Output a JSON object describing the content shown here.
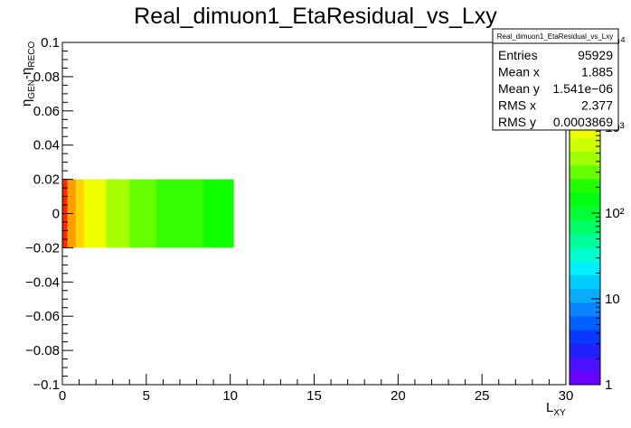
{
  "chart_data": {
    "type": "heatmap",
    "title": "Real_dimuon1_EtaResidual_vs_Lxy",
    "xlabel": {
      "main": "L",
      "sub": "XY"
    },
    "ylabel": {
      "main": "η",
      "sub1": "GEN",
      "mid": "-η",
      "sub2": "RECO"
    },
    "xlim": [
      0,
      30
    ],
    "ylim": [
      -0.1,
      0.1
    ],
    "x_ticks": [
      0,
      5,
      10,
      15,
      20,
      25,
      30
    ],
    "y_ticks": [
      -0.1,
      -0.08,
      -0.06,
      -0.04,
      -0.02,
      0,
      0.02,
      0.04,
      0.06,
      0.08,
      0.1
    ],
    "x_tick_labels": [
      "0",
      "5",
      "10",
      "15",
      "20",
      "25",
      "30"
    ],
    "y_tick_labels": [
      "−0.1",
      "−0.08",
      "−0.06",
      "−0.04",
      "−0.02",
      "0",
      "0.02",
      "0.04",
      "0.06",
      "0.08",
      "0.1"
    ],
    "colorbar": {
      "scale": "log",
      "range": [
        1,
        10000
      ],
      "tick_labels": [
        "1",
        "10",
        "10²",
        "10³",
        "10⁴"
      ],
      "palette": [
        "#6a00ff",
        "#4a10ff",
        "#2020ff",
        "#0a38ff",
        "#0060ff",
        "#0a85ff",
        "#0aaaff",
        "#00ccff",
        "#00f0ff",
        "#00ffcc",
        "#00ff99",
        "#00ff66",
        "#00ff33",
        "#00ff10",
        "#22ff00",
        "#66ff00",
        "#a0ff00",
        "#ccff00",
        "#f0ff00",
        "#ffee00",
        "#ffcc00",
        "#ffa000",
        "#ff7000",
        "#ff4000",
        "#ff1000"
      ]
    },
    "cells": [
      {
        "x0": 0.0,
        "x1": 0.3,
        "y0": -0.02,
        "y1": 0.02,
        "color": "#ff2a00"
      },
      {
        "x0": 0.3,
        "x1": 0.8,
        "y0": -0.02,
        "y1": 0.02,
        "color": "#ffa000"
      },
      {
        "x0": 0.8,
        "x1": 1.3,
        "y0": -0.02,
        "y1": 0.02,
        "color": "#ffd400"
      },
      {
        "x0": 1.3,
        "x1": 2.6,
        "y0": -0.02,
        "y1": 0.02,
        "color": "#f0ff00"
      },
      {
        "x0": 2.6,
        "x1": 4.0,
        "y0": -0.02,
        "y1": 0.02,
        "color": "#a8ff00"
      },
      {
        "x0": 4.0,
        "x1": 5.6,
        "y0": -0.02,
        "y1": 0.02,
        "color": "#66ff00"
      },
      {
        "x0": 5.6,
        "x1": 8.4,
        "y0": -0.02,
        "y1": 0.02,
        "color": "#33ff00"
      },
      {
        "x0": 8.4,
        "x1": 10.2,
        "y0": -0.02,
        "y1": 0.02,
        "color": "#10ff00"
      }
    ]
  },
  "stats": {
    "title": "Real_dimuon1_EtaResidual_vs_Lxy",
    "rows": [
      {
        "label": "Entries",
        "value": "95929"
      },
      {
        "label": "Mean x",
        "value": "1.885"
      },
      {
        "label": "Mean y",
        "value": "1.541e−06"
      },
      {
        "label": "RMS x",
        "value": "2.377"
      },
      {
        "label": "RMS y",
        "value": "0.0003869"
      }
    ]
  }
}
